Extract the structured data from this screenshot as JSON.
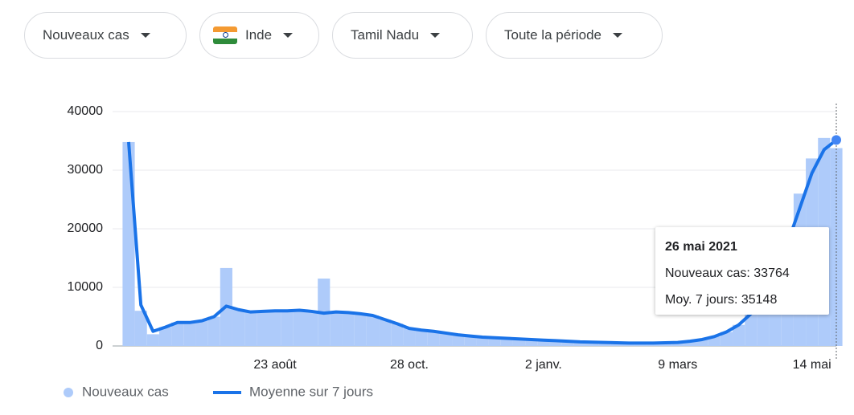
{
  "filters": [
    "Nouveaux cas",
    "Inde",
    "Tamil Nadu",
    "Toute la période"
  ],
  "tooltip": {
    "date": "26 mai 2021",
    "lines": [
      "Nouveaux cas: 33764",
      "Moy. 7 jours: 35148"
    ]
  },
  "chart_data": {
    "type": "bar-line",
    "categories": [
      null,
      null,
      null,
      null,
      null,
      null,
      null,
      null,
      null,
      null,
      null,
      null,
      "23 août",
      null,
      null,
      null,
      null,
      null,
      null,
      null,
      null,
      null,
      null,
      "28 oct.",
      null,
      null,
      null,
      null,
      null,
      null,
      null,
      null,
      null,
      null,
      "2 janv.",
      null,
      null,
      null,
      null,
      null,
      null,
      null,
      null,
      null,
      null,
      "9 mars",
      null,
      null,
      null,
      null,
      null,
      null,
      null,
      null,
      null,
      null,
      "14 mai",
      null,
      null
    ],
    "series": [
      {
        "name": "Nouveaux cas",
        "type": "bar",
        "color": "#aecbfa",
        "values": [
          34800,
          6000,
          2000,
          3200,
          4000,
          4000,
          4300,
          5000,
          13300,
          6200,
          5800,
          5900,
          6000,
          6000,
          6100,
          5900,
          11500,
          5800,
          5700,
          5500,
          5200,
          4500,
          3800,
          3000,
          2700,
          2500,
          2200,
          1900,
          1700,
          1500,
          1400,
          1300,
          1200,
          1100,
          1000,
          900,
          800,
          700,
          650,
          600,
          550,
          500,
          500,
          500,
          550,
          600,
          800,
          1100,
          1600,
          2400,
          3600,
          6500,
          10000,
          14500,
          20000,
          26000,
          32000,
          35500,
          33764
        ]
      },
      {
        "name": "Moyenne sur 7 jours",
        "type": "line",
        "color": "#1a73e8",
        "values": [
          34800,
          7000,
          2500,
          3200,
          4000,
          4000,
          4300,
          5000,
          6800,
          6200,
          5800,
          5900,
          6000,
          6000,
          6100,
          5900,
          5600,
          5800,
          5700,
          5500,
          5200,
          4500,
          3800,
          3000,
          2700,
          2500,
          2200,
          1900,
          1700,
          1500,
          1400,
          1300,
          1200,
          1100,
          1000,
          900,
          800,
          700,
          650,
          600,
          550,
          500,
          500,
          500,
          550,
          600,
          800,
          1100,
          1600,
          2400,
          3600,
          5500,
          8500,
          12500,
          17500,
          23500,
          29500,
          33500,
          35148
        ]
      }
    ],
    "ylim": [
      0,
      40000
    ],
    "yticks": [
      0,
      10000,
      20000,
      30000,
      40000
    ],
    "grid": true,
    "legend": "bottom"
  }
}
